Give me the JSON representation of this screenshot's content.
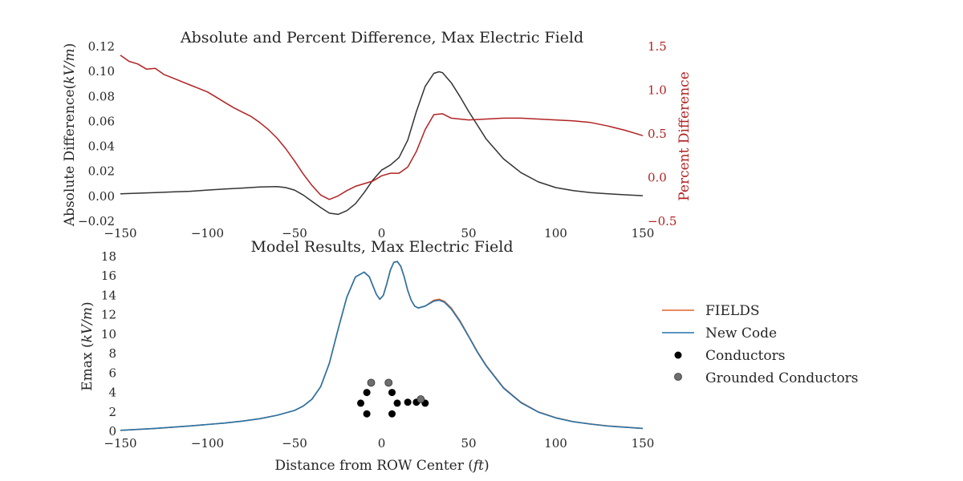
{
  "chart_data": [
    {
      "type": "line",
      "title": "Absolute and Percent Difference, Max Electric Field",
      "ylabel": "Absolute Difference(kV/m)",
      "ylabel_right": "Percent Difference",
      "xlim": [
        -150,
        150
      ],
      "ylim": [
        -0.02,
        0.12
      ],
      "ylim_right": [
        -0.5,
        1.5
      ],
      "x_ticks": [
        "−150",
        "−100",
        "−50",
        "0",
        "50",
        "100",
        "150"
      ],
      "y_ticks": [
        "−0.02",
        "0.00",
        "0.02",
        "0.04",
        "0.06",
        "0.08",
        "0.10",
        "0.12"
      ],
      "y_ticks_right": [
        "−0.5",
        "0.0",
        "0.5",
        "1.0",
        "1.5"
      ],
      "grid": false,
      "series": [
        {
          "axis": "left",
          "color": "#333333",
          "x": [
            -150,
            -140,
            -130,
            -120,
            -110,
            -100,
            -90,
            -80,
            -70,
            -60,
            -55,
            -50,
            -45,
            -40,
            -35,
            -30,
            -25,
            -20,
            -15,
            -10,
            -5,
            0,
            5,
            10,
            15,
            20,
            25,
            30,
            33,
            35,
            40,
            45,
            50,
            55,
            60,
            70,
            80,
            90,
            100,
            110,
            120,
            130,
            140,
            150
          ],
          "y": [
            0.002,
            0.0025,
            0.003,
            0.0035,
            0.004,
            0.005,
            0.0058,
            0.0066,
            0.0074,
            0.0078,
            0.007,
            0.005,
            0.001,
            -0.004,
            -0.009,
            -0.0135,
            -0.0145,
            -0.0115,
            -0.006,
            0.003,
            0.013,
            0.021,
            0.025,
            0.031,
            0.045,
            0.068,
            0.088,
            0.0985,
            0.0998,
            0.099,
            0.091,
            0.08,
            0.068,
            0.057,
            0.046,
            0.03,
            0.019,
            0.0115,
            0.007,
            0.0045,
            0.003,
            0.002,
            0.0012,
            0.0005
          ]
        },
        {
          "axis": "right",
          "color": "#b22222",
          "x": [
            -150,
            -145,
            -140,
            -135,
            -130,
            -125,
            -120,
            -115,
            -110,
            -105,
            -100,
            -95,
            -90,
            -85,
            -80,
            -75,
            -70,
            -65,
            -60,
            -55,
            -50,
            -45,
            -40,
            -35,
            -30,
            -25,
            -20,
            -15,
            -10,
            -5,
            0,
            5,
            10,
            15,
            20,
            25,
            30,
            35,
            40,
            50,
            60,
            70,
            80,
            90,
            100,
            110,
            120,
            130,
            140,
            150
          ],
          "y": [
            1.4,
            1.33,
            1.3,
            1.24,
            1.25,
            1.18,
            1.14,
            1.1,
            1.06,
            1.02,
            0.98,
            0.92,
            0.86,
            0.8,
            0.75,
            0.7,
            0.63,
            0.55,
            0.45,
            0.33,
            0.19,
            0.04,
            -0.09,
            -0.2,
            -0.25,
            -0.21,
            -0.15,
            -0.1,
            -0.07,
            -0.04,
            0.02,
            0.05,
            0.05,
            0.12,
            0.3,
            0.55,
            0.72,
            0.73,
            0.68,
            0.66,
            0.67,
            0.68,
            0.68,
            0.67,
            0.66,
            0.65,
            0.63,
            0.59,
            0.54,
            0.48
          ]
        }
      ]
    },
    {
      "type": "line",
      "title": "Model Results, Max Electric Field",
      "xlabel": "Distance from ROW Center (ft)",
      "ylabel": "Emax (kV/m)",
      "xlim": [
        -150,
        150
      ],
      "ylim": [
        0,
        18
      ],
      "x_ticks": [
        "−150",
        "−100",
        "−50",
        "0",
        "50",
        "100",
        "150"
      ],
      "y_ticks": [
        "0",
        "2",
        "4",
        "6",
        "8",
        "10",
        "12",
        "14",
        "16",
        "18"
      ],
      "grid": false,
      "legend": "right",
      "x": [
        -150,
        -130,
        -110,
        -90,
        -80,
        -70,
        -60,
        -50,
        -45,
        -40,
        -35,
        -30,
        -25,
        -20,
        -15,
        -10,
        -7,
        -5,
        -3,
        -1,
        1,
        3,
        5,
        7,
        9,
        11,
        13,
        15,
        17,
        19,
        21,
        25,
        30,
        33,
        36,
        40,
        45,
        50,
        55,
        60,
        70,
        80,
        90,
        100,
        110,
        120,
        130,
        150
      ],
      "series": [
        {
          "name": "FIELDS",
          "color": "#e2622a",
          "values": [
            0.1,
            0.3,
            0.55,
            0.85,
            1.05,
            1.3,
            1.65,
            2.15,
            2.6,
            3.3,
            4.6,
            7.0,
            10.5,
            13.8,
            15.9,
            16.4,
            15.9,
            15.0,
            14.1,
            13.6,
            14.0,
            15.2,
            16.6,
            17.4,
            17.5,
            17.0,
            15.9,
            14.5,
            13.5,
            12.9,
            12.7,
            12.9,
            13.5,
            13.6,
            13.4,
            12.7,
            11.4,
            9.8,
            8.2,
            6.8,
            4.5,
            3.0,
            2.0,
            1.4,
            1.0,
            0.75,
            0.55,
            0.3
          ]
        },
        {
          "name": "New Code",
          "color": "#2574a9",
          "values": [
            0.1,
            0.3,
            0.55,
            0.85,
            1.05,
            1.3,
            1.65,
            2.15,
            2.6,
            3.3,
            4.6,
            7.0,
            10.5,
            13.8,
            15.9,
            16.4,
            15.9,
            15.0,
            14.1,
            13.6,
            14.0,
            15.2,
            16.6,
            17.4,
            17.5,
            17.0,
            15.9,
            14.5,
            13.5,
            12.9,
            12.7,
            12.9,
            13.4,
            13.5,
            13.3,
            12.6,
            11.3,
            9.75,
            8.15,
            6.75,
            4.45,
            2.95,
            1.97,
            1.38,
            0.98,
            0.74,
            0.54,
            0.3
          ]
        }
      ],
      "scatter_series": [
        {
          "name": "Conductors",
          "color": "#000000",
          "x": [
            -12,
            -8.5,
            -8.5,
            6,
            6,
            9,
            15,
            20,
            25
          ],
          "y": [
            2.9,
            4.0,
            1.8,
            4.0,
            1.8,
            2.9,
            3.0,
            3.0,
            2.9
          ]
        },
        {
          "name": "Grounded Conductors",
          "color": "#6e6e6e",
          "x": [
            -6,
            4,
            22.5
          ],
          "y": [
            5.0,
            5.0,
            3.3
          ]
        }
      ]
    }
  ]
}
